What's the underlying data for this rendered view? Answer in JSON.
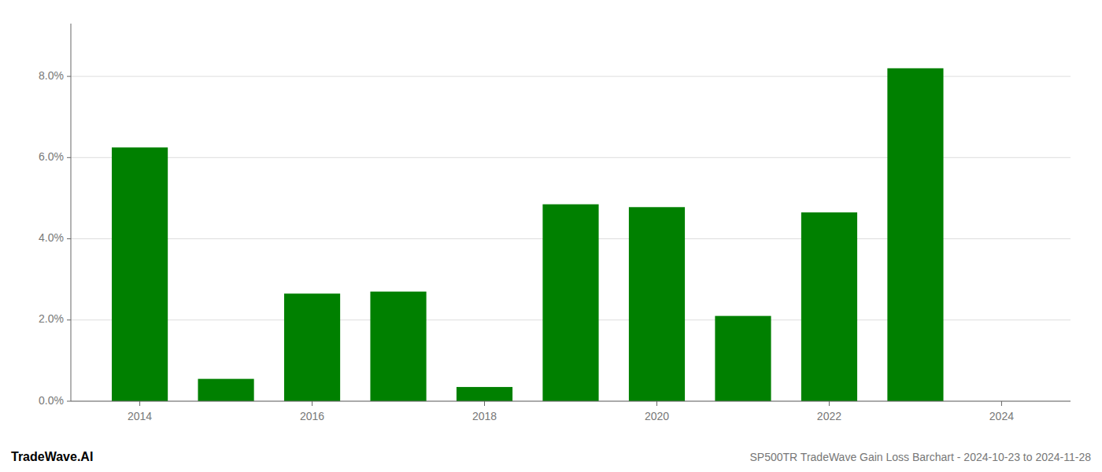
{
  "chart_data": {
    "type": "bar",
    "title": "SP500TR TradeWave Gain Loss Barchart - 2024-10-23 to 2024-11-28",
    "annotations": [
      "TradeWave.AI"
    ],
    "x": [
      2014,
      2015,
      2016,
      2017,
      2018,
      2019,
      2020,
      2021,
      2022,
      2023
    ],
    "values": [
      0.0625,
      0.0055,
      0.0265,
      0.027,
      0.0035,
      0.0485,
      0.0478,
      0.021,
      0.0465,
      0.082
    ],
    "color": "#008000",
    "xlim": [
      2013.2,
      2024.8
    ],
    "xticks": [
      2014,
      2016,
      2018,
      2020,
      2022,
      2024
    ],
    "ylim": [
      0.0,
      0.093
    ],
    "yticks": [
      {
        "value": 0.0,
        "label": "0.0%"
      },
      {
        "value": 0.02,
        "label": "2.0%"
      },
      {
        "value": 0.04,
        "label": "4.0%"
      },
      {
        "value": 0.06,
        "label": "6.0%"
      },
      {
        "value": 0.08,
        "label": "8.0%"
      }
    ],
    "grid": true
  }
}
